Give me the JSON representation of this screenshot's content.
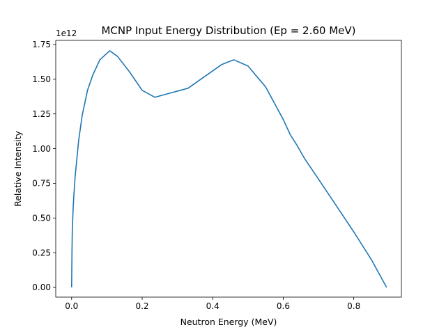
{
  "chart_data": {
    "type": "line",
    "title": "MCNP Input Energy Distribution (Ep = 2.60 MeV)",
    "xlabel": "Neutron Energy (MeV)",
    "ylabel": "Relative Intensity",
    "y_multiplier_label": "1e12",
    "xlim": [
      -0.045,
      0.935
    ],
    "ylim": [
      -0.07,
      1.78
    ],
    "y_scale_factor": 1000000000000.0,
    "x_ticks": [
      0.0,
      0.2,
      0.4,
      0.6,
      0.8
    ],
    "x_tick_labels": [
      "0.0",
      "0.2",
      "0.4",
      "0.6",
      "0.8"
    ],
    "y_ticks": [
      0.0,
      0.25,
      0.5,
      0.75,
      1.0,
      1.25,
      1.5,
      1.75
    ],
    "y_tick_labels": [
      "0.00",
      "0.25",
      "0.50",
      "0.75",
      "1.00",
      "1.25",
      "1.50",
      "1.75"
    ],
    "grid": false,
    "series": [
      {
        "color": "#1f77b4",
        "x": [
          0.0,
          0.001,
          0.002,
          0.004,
          0.006,
          0.01,
          0.015,
          0.02,
          0.03,
          0.045,
          0.06,
          0.08,
          0.108,
          0.13,
          0.165,
          0.2,
          0.236,
          0.33,
          0.425,
          0.46,
          0.5,
          0.55,
          0.6,
          0.62,
          0.64,
          0.66,
          0.7,
          0.75,
          0.8,
          0.85,
          0.893
        ],
        "y": [
          0.0,
          0.25,
          0.42,
          0.55,
          0.65,
          0.8,
          0.93,
          1.06,
          1.24,
          1.42,
          1.53,
          1.64,
          1.705,
          1.665,
          1.55,
          1.42,
          1.37,
          1.435,
          1.605,
          1.64,
          1.595,
          1.445,
          1.21,
          1.1,
          1.02,
          0.93,
          0.78,
          0.59,
          0.4,
          0.2,
          0.0
        ]
      }
    ]
  }
}
